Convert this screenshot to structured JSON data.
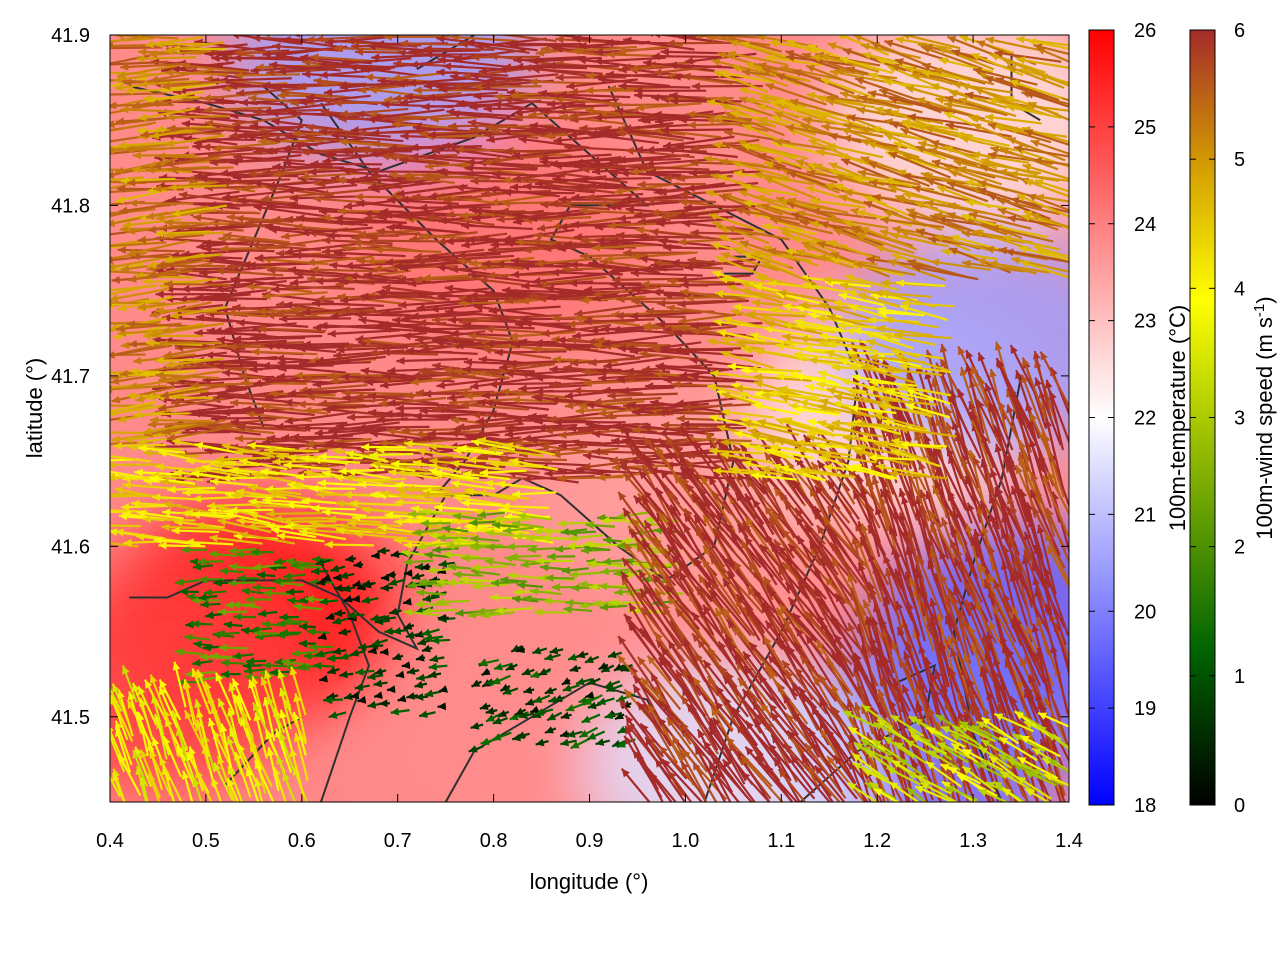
{
  "chart_data": {
    "type": "heatmap",
    "title": "",
    "xlabel": "longitude (°)",
    "ylabel": "latitude (°)",
    "xlim": [
      0.4,
      1.4
    ],
    "ylim": [
      41.45,
      41.9
    ],
    "xticks": [
      0.4,
      0.5,
      0.6,
      0.7,
      0.8,
      0.9,
      1.0,
      1.1,
      1.2,
      1.3,
      1.4
    ],
    "xtick_labels": [
      "0.4",
      "0.5",
      "0.6",
      "0.7",
      "0.8",
      "0.9",
      "1.0",
      "1.1",
      "1.2",
      "1.3",
      "1.4"
    ],
    "yticks": [
      41.5,
      41.6,
      41.7,
      41.8,
      41.9
    ],
    "ytick_labels": [
      "41.5",
      "41.6",
      "41.7",
      "41.8",
      "41.9"
    ],
    "grid": false,
    "temperature_colorbar": {
      "label": "100m-temperature (°C)",
      "range": [
        18,
        26
      ],
      "ticks": [
        18,
        19,
        20,
        21,
        22,
        23,
        24,
        25,
        26
      ],
      "tick_labels": [
        "18",
        "19",
        "20",
        "21",
        "22",
        "23",
        "24",
        "25",
        "26"
      ],
      "colors": [
        "#0000ff",
        "#ffffff",
        "#ff0000"
      ]
    },
    "wind_colorbar": {
      "label": "100m-wind speed (m s",
      "label_superscript": "-1",
      "label_close": ")",
      "range": [
        0,
        6
      ],
      "ticks": [
        0,
        1,
        2,
        3,
        4,
        5,
        6
      ],
      "tick_labels": [
        "0",
        "1",
        "2",
        "3",
        "4",
        "5",
        "6"
      ],
      "colors": [
        "#000000",
        "#006400",
        "#8fb800",
        "#ffff00",
        "#d4a000",
        "#a52a2a"
      ]
    },
    "temperature_regions": [
      {
        "lon": 0.8,
        "lat": 41.78,
        "value": 24.2
      },
      {
        "lon": 0.55,
        "lat": 41.56,
        "value": 25.8
      },
      {
        "lon": 0.45,
        "lat": 41.52,
        "value": 25.0
      },
      {
        "lon": 0.85,
        "lat": 41.5,
        "value": 23.8
      },
      {
        "lon": 1.0,
        "lat": 41.63,
        "value": 23.5
      },
      {
        "lon": 1.22,
        "lat": 41.68,
        "value": 22.5
      },
      {
        "lon": 1.35,
        "lat": 41.55,
        "value": 19.5
      },
      {
        "lon": 1.25,
        "lat": 41.48,
        "value": 19.8
      },
      {
        "lon": 1.05,
        "lat": 41.47,
        "value": 21.5
      },
      {
        "lon": 1.32,
        "lat": 41.72,
        "value": 20.5
      },
      {
        "lon": 0.68,
        "lat": 41.89,
        "value": 20.5
      },
      {
        "lon": 1.3,
        "lat": 41.85,
        "value": 22.5
      }
    ],
    "wind_regions": [
      {
        "lon_min": 0.48,
        "lon_max": 1.05,
        "lat_min": 41.64,
        "lat_max": 41.9,
        "speed": 6.0,
        "dir_deg": 180
      },
      {
        "lon_min": 0.4,
        "lon_max": 0.5,
        "lat_min": 41.66,
        "lat_max": 41.9,
        "speed": 5.0,
        "dir_deg": 185
      },
      {
        "lon_min": 0.4,
        "lon_max": 0.85,
        "lat_min": 41.6,
        "lat_max": 41.66,
        "speed": 4.0,
        "dir_deg": 175
      },
      {
        "lon_min": 0.48,
        "lon_max": 0.62,
        "lat_min": 41.52,
        "lat_max": 41.6,
        "speed": 1.6,
        "dir_deg": 180
      },
      {
        "lon_min": 0.62,
        "lon_max": 0.75,
        "lat_min": 41.5,
        "lat_max": 41.6,
        "speed": 0.6,
        "dir_deg": 190
      },
      {
        "lon_min": 0.4,
        "lon_max": 0.6,
        "lat_min": 41.45,
        "lat_max": 41.52,
        "speed": 3.6,
        "dir_deg": 110
      },
      {
        "lon_min": 0.72,
        "lon_max": 0.98,
        "lat_min": 41.56,
        "lat_max": 41.62,
        "speed": 2.4,
        "dir_deg": 180
      },
      {
        "lon_min": 0.78,
        "lon_max": 0.95,
        "lat_min": 41.48,
        "lat_max": 41.54,
        "speed": 0.8,
        "dir_deg": 200
      },
      {
        "lon_min": 0.95,
        "lon_max": 1.18,
        "lat_min": 41.45,
        "lat_max": 41.65,
        "speed": 6.0,
        "dir_deg": 125
      },
      {
        "lon_min": 1.18,
        "lon_max": 1.4,
        "lat_min": 41.45,
        "lat_max": 41.7,
        "speed": 6.0,
        "dir_deg": 110
      },
      {
        "lon_min": 1.18,
        "lon_max": 1.4,
        "lat_min": 41.45,
        "lat_max": 41.5,
        "speed": 3.0,
        "dir_deg": 150
      },
      {
        "lon_min": 1.05,
        "lon_max": 1.25,
        "lat_min": 41.64,
        "lat_max": 41.76,
        "speed": 4.2,
        "dir_deg": 170
      },
      {
        "lon_min": 1.05,
        "lon_max": 1.4,
        "lat_min": 41.76,
        "lat_max": 41.9,
        "speed": 5.0,
        "dir_deg": 165
      }
    ],
    "contours": [
      [
        [
          0.42,
          41.87
        ],
        [
          0.5,
          41.86
        ],
        [
          0.56,
          41.85
        ],
        [
          0.62,
          41.83
        ],
        [
          0.68,
          41.82
        ],
        [
          0.78,
          41.84
        ],
        [
          0.84,
          41.86
        ],
        [
          0.9,
          41.83
        ],
        [
          0.96,
          41.8
        ],
        [
          0.88,
          41.8
        ],
        [
          0.86,
          41.78
        ],
        [
          0.9,
          41.77
        ],
        [
          0.98,
          41.73
        ],
        [
          1.03,
          41.7
        ],
        [
          1.05,
          41.65
        ],
        [
          1.03,
          41.6
        ],
        [
          0.98,
          41.58
        ],
        [
          0.93,
          41.6
        ],
        [
          0.87,
          41.63
        ],
        [
          0.83,
          41.64
        ],
        [
          0.8,
          41.63
        ],
        [
          0.75,
          41.63
        ],
        [
          0.71,
          41.59
        ],
        [
          0.7,
          41.56
        ],
        [
          0.72,
          41.54
        ],
        [
          0.68,
          41.55
        ],
        [
          0.64,
          41.57
        ],
        [
          0.6,
          41.58
        ],
        [
          0.55,
          41.58
        ],
        [
          0.5,
          41.58
        ],
        [
          0.46,
          41.57
        ],
        [
          0.42,
          41.57
        ]
      ],
      [
        [
          0.56,
          41.67
        ],
        [
          0.54,
          41.7
        ],
        [
          0.52,
          41.74
        ],
        [
          0.55,
          41.78
        ],
        [
          0.58,
          41.82
        ],
        [
          0.6,
          41.85
        ],
        [
          0.56,
          41.87
        ]
      ],
      [
        [
          0.62,
          41.86
        ],
        [
          0.67,
          41.82
        ],
        [
          0.74,
          41.78
        ],
        [
          0.8,
          41.75
        ],
        [
          0.82,
          41.72
        ],
        [
          0.8,
          41.68
        ],
        [
          0.77,
          41.65
        ],
        [
          0.74,
          41.63
        ]
      ],
      [
        [
          0.92,
          41.87
        ],
        [
          0.96,
          41.82
        ],
        [
          1.03,
          41.8
        ],
        [
          1.1,
          41.78
        ],
        [
          1.15,
          41.74
        ],
        [
          1.18,
          41.7
        ],
        [
          1.17,
          41.65
        ],
        [
          1.14,
          41.6
        ],
        [
          1.1,
          41.55
        ],
        [
          1.05,
          41.5
        ],
        [
          1.02,
          41.45
        ]
      ],
      [
        [
          0.72,
          41.88
        ],
        [
          0.78,
          41.9
        ]
      ],
      [
        [
          1.35,
          41.7
        ],
        [
          1.33,
          41.64
        ],
        [
          1.3,
          41.59
        ],
        [
          1.28,
          41.55
        ],
        [
          1.3,
          41.49
        ],
        [
          1.33,
          41.45
        ]
      ],
      [
        [
          1.12,
          41.45
        ],
        [
          1.18,
          41.48
        ],
        [
          1.25,
          41.5
        ],
        [
          1.26,
          41.53
        ],
        [
          1.22,
          41.52
        ]
      ],
      [
        [
          0.62,
          41.45
        ],
        [
          0.65,
          41.5
        ],
        [
          0.67,
          41.53
        ],
        [
          0.65,
          41.56
        ],
        [
          0.62,
          41.59
        ]
      ],
      [
        [
          0.52,
          41.46
        ],
        [
          0.57,
          41.49
        ],
        [
          0.6,
          41.5
        ]
      ],
      [
        [
          0.75,
          41.45
        ],
        [
          0.78,
          41.48
        ],
        [
          0.84,
          41.5
        ],
        [
          0.9,
          41.52
        ],
        [
          0.96,
          41.51
        ],
        [
          1.0,
          41.47
        ]
      ],
      [
        [
          1.04,
          41.76
        ],
        [
          1.07,
          41.76
        ],
        [
          1.08,
          41.77
        ],
        [
          1.05,
          41.77
        ]
      ],
      [
        [
          1.34,
          41.89
        ],
        [
          1.34,
          41.86
        ],
        [
          1.37,
          41.85
        ]
      ]
    ]
  }
}
